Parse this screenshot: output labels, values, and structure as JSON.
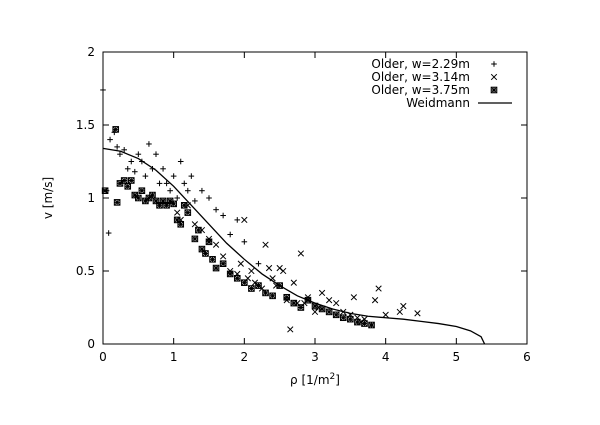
{
  "chart_data": {
    "type": "scatter",
    "title": "",
    "xlabel_main": "ρ [1/m",
    "xlabel_sup": "2",
    "xlabel_close": "]",
    "ylabel": "v [m/s]",
    "xlim": [
      0,
      6
    ],
    "ylim": [
      0,
      2
    ],
    "x_ticks": [
      "0",
      "1",
      "2",
      "3",
      "4",
      "5",
      "6"
    ],
    "y_ticks": [
      "0",
      "0.5",
      "1",
      "1.5",
      "2"
    ],
    "grid": false,
    "legend_position": "top-right",
    "series": [
      {
        "name": "Older, w=2.29m",
        "marker": "plus",
        "x": [
          0.0,
          0.05,
          0.08,
          0.1,
          0.16,
          0.2,
          0.24,
          0.3,
          0.35,
          0.4,
          0.45,
          0.5,
          0.55,
          0.6,
          0.65,
          0.7,
          0.75,
          0.8,
          0.85,
          0.9,
          0.95,
          1.0,
          1.05,
          1.1,
          1.15,
          1.2,
          1.25,
          1.3,
          1.4,
          1.5,
          1.6,
          1.7,
          1.8,
          1.9,
          2.0,
          2.2
        ],
        "y": [
          1.74,
          1.05,
          0.76,
          1.4,
          1.45,
          1.35,
          1.3,
          1.33,
          1.2,
          1.25,
          1.18,
          1.3,
          1.25,
          1.15,
          1.37,
          1.2,
          1.3,
          1.1,
          1.2,
          1.1,
          1.05,
          1.15,
          1.0,
          1.25,
          1.1,
          1.05,
          1.15,
          0.98,
          1.05,
          1.0,
          0.92,
          0.88,
          0.75,
          0.85,
          0.7,
          0.55
        ]
      },
      {
        "name": "Older, w=3.14m",
        "marker": "cross",
        "x": [
          1.05,
          1.1,
          1.2,
          1.3,
          1.4,
          1.5,
          1.6,
          1.7,
          1.8,
          1.9,
          1.95,
          2.0,
          2.05,
          2.1,
          2.15,
          2.2,
          2.25,
          2.3,
          2.35,
          2.4,
          2.45,
          2.5,
          2.55,
          2.6,
          2.65,
          2.7,
          2.75,
          2.8,
          2.85,
          2.9,
          3.0,
          3.05,
          3.1,
          3.2,
          3.3,
          3.4,
          3.5,
          3.55,
          3.6,
          3.65,
          3.7,
          3.8,
          3.85,
          3.9,
          4.0,
          4.2,
          4.25,
          4.45
        ],
        "y": [
          0.9,
          0.85,
          0.95,
          0.82,
          0.78,
          0.72,
          0.68,
          0.6,
          0.5,
          0.48,
          0.55,
          0.85,
          0.45,
          0.5,
          0.42,
          0.4,
          0.38,
          0.68,
          0.52,
          0.45,
          0.4,
          0.52,
          0.5,
          0.3,
          0.1,
          0.42,
          0.28,
          0.62,
          0.28,
          0.32,
          0.22,
          0.25,
          0.35,
          0.3,
          0.28,
          0.22,
          0.2,
          0.32,
          0.18,
          0.15,
          0.17,
          0.13,
          0.3,
          0.38,
          0.2,
          0.22,
          0.26,
          0.21
        ]
      },
      {
        "name": "Older, w=3.75m",
        "marker": "boxcross",
        "x": [
          0.03,
          0.18,
          0.2,
          0.24,
          0.3,
          0.35,
          0.4,
          0.45,
          0.5,
          0.55,
          0.6,
          0.65,
          0.7,
          0.75,
          0.8,
          0.85,
          0.9,
          0.95,
          1.0,
          1.05,
          1.1,
          1.15,
          1.2,
          1.3,
          1.35,
          1.4,
          1.45,
          1.5,
          1.55,
          1.6,
          1.7,
          1.8,
          1.9,
          2.0,
          2.1,
          2.2,
          2.3,
          2.4,
          2.5,
          2.6,
          2.7,
          2.8,
          2.9,
          3.0,
          3.1,
          3.2,
          3.3,
          3.4,
          3.5,
          3.6,
          3.7,
          3.8
        ],
        "y": [
          1.05,
          1.47,
          0.97,
          1.1,
          1.12,
          1.08,
          1.12,
          1.02,
          1.0,
          1.05,
          0.98,
          1.0,
          1.02,
          0.98,
          0.95,
          0.98,
          0.95,
          0.98,
          0.96,
          0.85,
          0.82,
          0.95,
          0.9,
          0.72,
          0.78,
          0.65,
          0.62,
          0.7,
          0.58,
          0.52,
          0.55,
          0.48,
          0.45,
          0.42,
          0.38,
          0.4,
          0.35,
          0.33,
          0.4,
          0.32,
          0.28,
          0.25,
          0.3,
          0.26,
          0.24,
          0.22,
          0.2,
          0.18,
          0.17,
          0.15,
          0.14,
          0.13
        ]
      },
      {
        "name": "Weidmann",
        "marker": "line",
        "x": [
          0,
          0.25,
          0.5,
          0.75,
          1.0,
          1.25,
          1.5,
          1.75,
          2.0,
          2.25,
          2.5,
          2.75,
          3.0,
          3.25,
          3.5,
          3.75,
          4.0,
          4.25,
          4.5,
          4.75,
          5.0,
          5.2,
          5.35,
          5.4
        ],
        "y": [
          1.34,
          1.32,
          1.27,
          1.19,
          1.08,
          0.95,
          0.82,
          0.69,
          0.58,
          0.48,
          0.4,
          0.33,
          0.28,
          0.24,
          0.21,
          0.19,
          0.18,
          0.17,
          0.155,
          0.14,
          0.12,
          0.09,
          0.05,
          0.0
        ]
      }
    ]
  }
}
